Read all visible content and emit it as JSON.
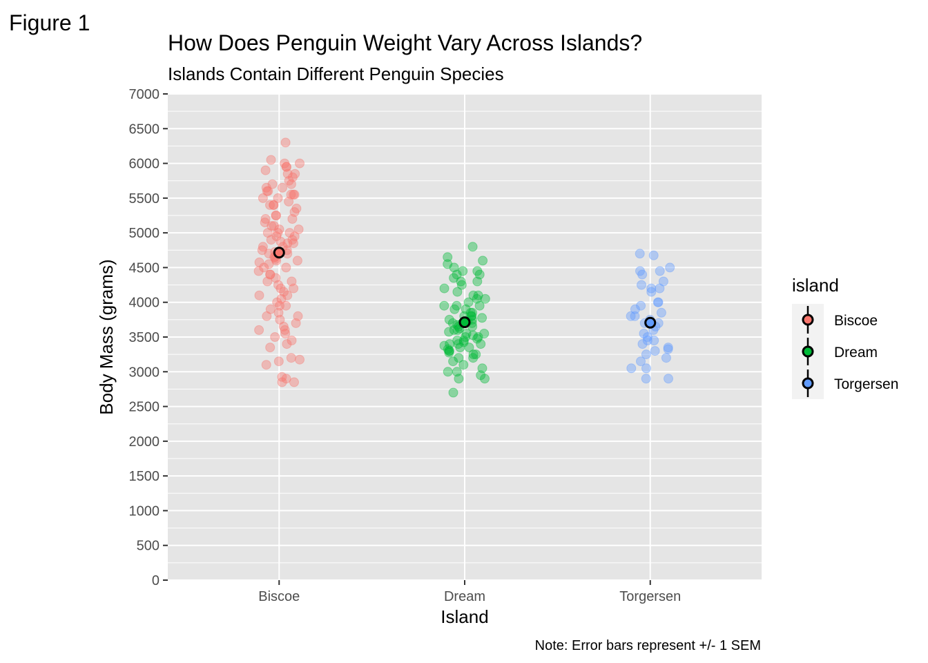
{
  "chart_data": {
    "type": "scatter",
    "tag": "Figure 1",
    "title": "How Does Penguin Weight Vary Across Islands?",
    "subtitle": "Islands Contain Different Penguin Species",
    "xlabel": "Island",
    "ylabel": "Body Mass (grams)",
    "caption": "Note: Error bars represent +/- 1 SEM",
    "categories": [
      "Biscoe",
      "Dream",
      "Torgersen"
    ],
    "ylim": [
      0,
      7000
    ],
    "yticks": [
      "0",
      "500",
      "1000",
      "1500",
      "2000",
      "2500",
      "3000",
      "3500",
      "4000",
      "4500",
      "5000",
      "5500",
      "6000",
      "6500",
      "7000"
    ],
    "grid": true,
    "legend": {
      "title": "island",
      "position": "right",
      "entries": [
        "Biscoe",
        "Dream",
        "Torgersen"
      ]
    },
    "colors": {
      "Biscoe": "#F8766D",
      "Dream": "#00BA38",
      "Torgersen": "#619CFF",
      "panel": "#E5E5E5",
      "grid": "#FFFFFF"
    },
    "series": [
      {
        "name": "Biscoe",
        "mean": 4716,
        "sem": 70,
        "values": [
          6300,
          6050,
          6000,
          6000,
          5950,
          5950,
          5900,
          5850,
          5850,
          5800,
          5750,
          5700,
          5700,
          5650,
          5650,
          5600,
          5600,
          5550,
          5550,
          5550,
          5500,
          5500,
          5450,
          5400,
          5400,
          5400,
          5350,
          5300,
          5250,
          5250,
          5200,
          5200,
          5150,
          5100,
          5100,
          5050,
          5050,
          5000,
          5000,
          5000,
          4950,
          4950,
          4900,
          4900,
          4875,
          4850,
          4850,
          4800,
          4800,
          4750,
          4750,
          4725,
          4700,
          4700,
          4650,
          4650,
          4625,
          4600,
          4600,
          4575,
          4550,
          4500,
          4500,
          4450,
          4400,
          4400,
          4350,
          4300,
          4300,
          4250,
          4200,
          4200,
          4150,
          4100,
          4100,
          4050,
          4000,
          3950,
          3950,
          3900,
          3850,
          3800,
          3800,
          3750,
          3700,
          3650,
          3600,
          3600,
          3550,
          3500,
          3450,
          3400,
          3350,
          3200,
          3175,
          3150,
          3100,
          2925,
          2900,
          2850,
          2850
        ]
      },
      {
        "name": "Dream",
        "mean": 3713,
        "sem": 40,
        "values": [
          4800,
          4650,
          4600,
          4550,
          4500,
          4450,
          4450,
          4400,
          4400,
          4350,
          4300,
          4300,
          4250,
          4200,
          4150,
          4100,
          4100,
          4050,
          4050,
          4000,
          3950,
          3950,
          3950,
          3900,
          3900,
          3850,
          3850,
          3800,
          3800,
          3800,
          3775,
          3750,
          3750,
          3725,
          3700,
          3700,
          3700,
          3675,
          3650,
          3650,
          3625,
          3600,
          3600,
          3575,
          3550,
          3550,
          3525,
          3500,
          3500,
          3475,
          3450,
          3450,
          3425,
          3400,
          3400,
          3400,
          3375,
          3350,
          3350,
          3325,
          3300,
          3300,
          3275,
          3250,
          3250,
          3200,
          3200,
          3150,
          3100,
          3050,
          3000,
          3000,
          2950,
          2900,
          2900,
          2700
        ]
      },
      {
        "name": "Torgersen",
        "mean": 3706,
        "sem": 75,
        "values": [
          4700,
          4675,
          4500,
          4450,
          4450,
          4400,
          4300,
          4250,
          4200,
          4200,
          4150,
          4000,
          4000,
          3950,
          3900,
          3850,
          3800,
          3800,
          3750,
          3700,
          3700,
          3700,
          3650,
          3600,
          3550,
          3500,
          3450,
          3450,
          3400,
          3350,
          3325,
          3300,
          3250,
          3200,
          3150,
          3050,
          3050,
          2900,
          2900
        ]
      }
    ]
  }
}
